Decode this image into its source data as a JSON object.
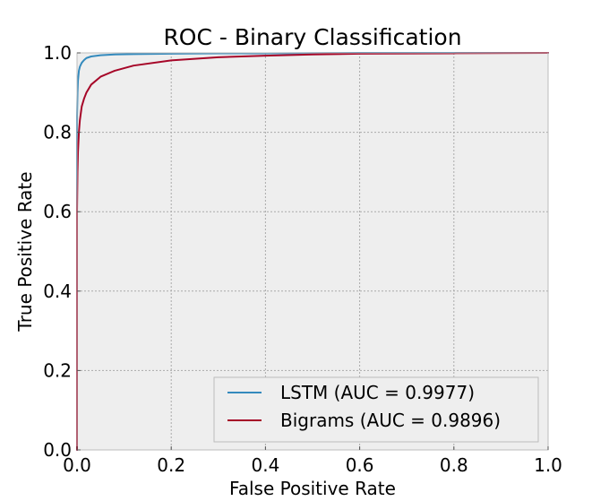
{
  "chart_data": {
    "type": "line",
    "title": "ROC - Binary Classification",
    "xlabel": "False Positive Rate",
    "ylabel": "True Positive Rate",
    "xlim": [
      0.0,
      1.0
    ],
    "ylim": [
      0.0,
      1.0
    ],
    "xticks": [
      "0.0",
      "0.2",
      "0.4",
      "0.6",
      "0.8",
      "1.0"
    ],
    "yticks": [
      "0.0",
      "0.2",
      "0.4",
      "0.6",
      "0.8",
      "1.0"
    ],
    "grid": true,
    "legend_position": "lower-right",
    "series": [
      {
        "name": "LSTM (AUC = 0.9977)",
        "color": "#348abd",
        "x": [
          0.0,
          0.0,
          0.001,
          0.002,
          0.004,
          0.006,
          0.01,
          0.015,
          0.02,
          0.03,
          0.05,
          0.08,
          0.12,
          0.2,
          0.3,
          0.4,
          0.6,
          0.8,
          1.0
        ],
        "y": [
          0.0,
          0.84,
          0.9,
          0.93,
          0.955,
          0.965,
          0.975,
          0.982,
          0.987,
          0.991,
          0.994,
          0.996,
          0.997,
          0.998,
          0.999,
          0.999,
          1.0,
          1.0,
          1.0
        ]
      },
      {
        "name": "Bigrams (AUC = 0.9896)",
        "color": "#a60628",
        "x": [
          0.0,
          0.0,
          0.001,
          0.002,
          0.004,
          0.006,
          0.01,
          0.015,
          0.02,
          0.03,
          0.05,
          0.08,
          0.12,
          0.2,
          0.3,
          0.4,
          0.5,
          0.6,
          0.8,
          1.0
        ],
        "y": [
          0.0,
          0.6,
          0.7,
          0.75,
          0.8,
          0.83,
          0.865,
          0.885,
          0.9,
          0.92,
          0.94,
          0.955,
          0.968,
          0.981,
          0.989,
          0.993,
          0.996,
          0.998,
          0.999,
          1.0
        ]
      }
    ]
  }
}
